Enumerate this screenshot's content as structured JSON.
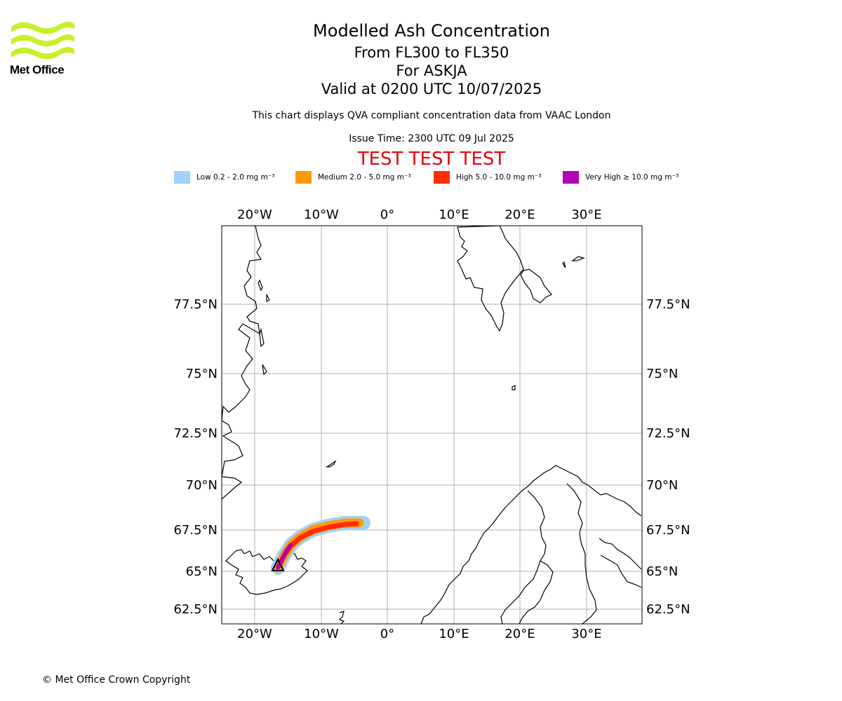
{
  "header": {
    "logo_text": "Met Office",
    "title": "Modelled Ash Concentration",
    "levels": "From FL300 to FL350",
    "volcano": "For ASKJA",
    "valid": "Valid at 0200 UTC 10/07/2025",
    "compliance": "This chart displays QVA compliant concentration data from VAAC London",
    "issue_time": "Issue Time: 2300 UTC 09 Jul 2025",
    "test_banner": "TEST TEST TEST"
  },
  "legend": [
    {
      "label": "Low 0.2 - 2.0 mg m⁻³",
      "color": "#a0d2fa"
    },
    {
      "label": "Medium 2.0 - 5.0 mg m⁻³",
      "color": "#ff9a0a"
    },
    {
      "label": "High 5.0 - 10.0 mg m⁻³",
      "color": "#ff2d00"
    },
    {
      "label": "Very High  ≥  10.0 mg m⁻³",
      "color": "#b400b0"
    }
  ],
  "map": {
    "lon_labels": [
      "20°W",
      "10°W",
      "0°",
      "10°E",
      "20°E",
      "30°E"
    ],
    "lat_labels": [
      "77.5°N",
      "75°N",
      "72.5°N",
      "70°N",
      "67.5°N",
      "65°N",
      "62.5°N"
    ],
    "grid_color": "#b0b0b0",
    "coast_color": "#000000",
    "volcano_marker": "triangle-marker"
  },
  "footer": {
    "copyright": "© Met Office Crown Copyright"
  }
}
